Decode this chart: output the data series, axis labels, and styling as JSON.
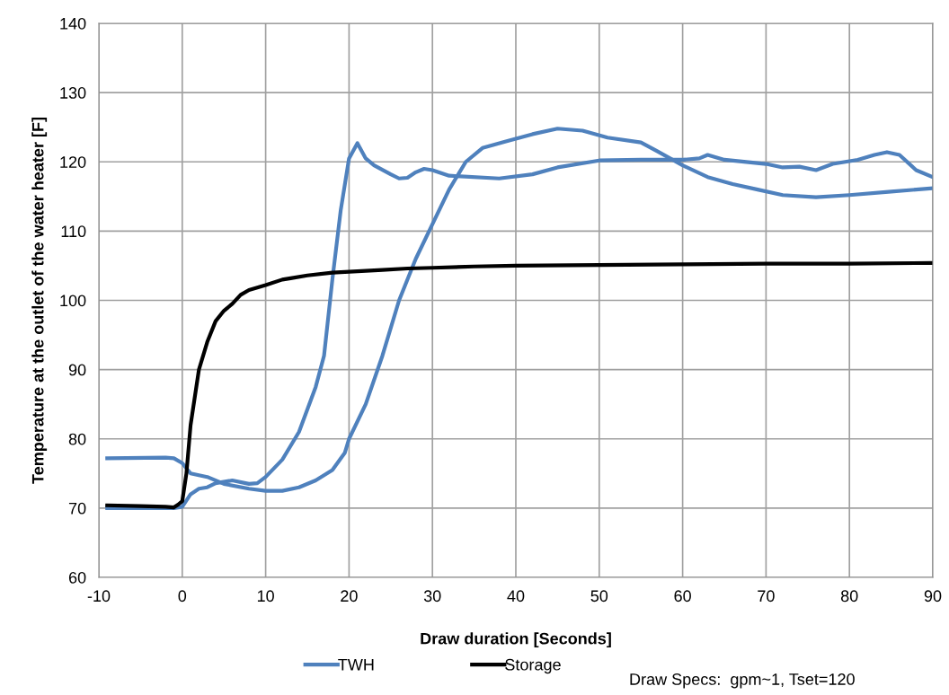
{
  "chart_data": {
    "type": "line",
    "xlabel": "Draw duration [Seconds]",
    "ylabel": "Temperature at the outlet of the water heater [F]",
    "xlim": [
      -10,
      90
    ],
    "xticks": [
      -10,
      0,
      10,
      20,
      30,
      40,
      50,
      60,
      70,
      80,
      90
    ],
    "ylim": [
      60,
      140
    ],
    "yticks": [
      60,
      70,
      80,
      90,
      100,
      110,
      120,
      130,
      140
    ],
    "grid": true,
    "legend": "bottom",
    "marker": "none",
    "line_style": "solid",
    "annotations": [
      "Draw Specs:  gpm~1, Tset=120"
    ],
    "series": [
      {
        "name": "TWH",
        "color": "#4f81bd",
        "x": [
          -9,
          -1,
          0,
          1,
          2,
          3,
          4,
          6,
          8,
          9,
          10,
          12,
          14,
          16,
          17,
          18,
          19,
          20,
          21,
          22,
          23,
          25,
          26,
          27,
          28,
          29,
          30,
          32,
          38,
          42,
          45,
          50,
          55,
          60,
          62,
          63,
          65,
          70,
          72,
          74,
          76,
          78,
          81,
          83,
          84.5,
          86,
          88,
          90
        ],
        "values": [
          70,
          70,
          70.2,
          72,
          72.8,
          73,
          73.6,
          74,
          73.5,
          73.6,
          74.5,
          77,
          81,
          87.5,
          92,
          103,
          113,
          120.5,
          122.7,
          120.5,
          119.5,
          118.2,
          117.6,
          117.7,
          118.5,
          119,
          118.8,
          118,
          117.6,
          118.2,
          119.2,
          120.2,
          120.3,
          120.3,
          120.5,
          121,
          120.3,
          119.7,
          119.2,
          119.3,
          118.8,
          119.7,
          120.3,
          121,
          121.4,
          121,
          118.8,
          117.8
        ]
      },
      {
        "color": "#4f81bd",
        "x": [
          -9,
          -2,
          -1,
          0,
          1,
          3,
          5,
          8,
          10,
          12,
          14,
          16,
          18,
          19.5,
          20,
          22,
          24,
          26,
          28,
          30,
          32,
          34,
          36,
          39,
          42,
          45,
          48,
          51,
          55,
          57,
          60,
          63,
          66,
          69,
          72,
          76,
          80,
          85,
          90
        ],
        "values": [
          77.2,
          77.3,
          77.2,
          76.5,
          75,
          74.5,
          73.5,
          72.8,
          72.5,
          72.5,
          73,
          74,
          75.5,
          78,
          80,
          85,
          92,
          100,
          106,
          111,
          116,
          120,
          122,
          123,
          124,
          124.8,
          124.5,
          123.5,
          122.8,
          121.5,
          119.5,
          117.8,
          116.8,
          116,
          115.2,
          114.9,
          115.2,
          115.7,
          116.2
        ]
      },
      {
        "name": "Storage",
        "color": "#000000",
        "x": [
          -9,
          -5,
          -2,
          -1,
          -0.5,
          0,
          0.5,
          1,
          2,
          3,
          4,
          5,
          6,
          7,
          8,
          10,
          12,
          13,
          15,
          18,
          21,
          24,
          27,
          30,
          35,
          40,
          50,
          60,
          70,
          80,
          90
        ],
        "values": [
          70.4,
          70.3,
          70.2,
          70.1,
          70.5,
          71,
          75,
          82,
          90,
          94,
          97,
          98.5,
          99.5,
          100.8,
          101.5,
          102.2,
          103,
          103.2,
          103.6,
          104,
          104.2,
          104.4,
          104.6,
          104.7,
          104.9,
          105,
          105.1,
          105.2,
          105.3,
          105.3,
          105.4
        ]
      }
    ]
  }
}
